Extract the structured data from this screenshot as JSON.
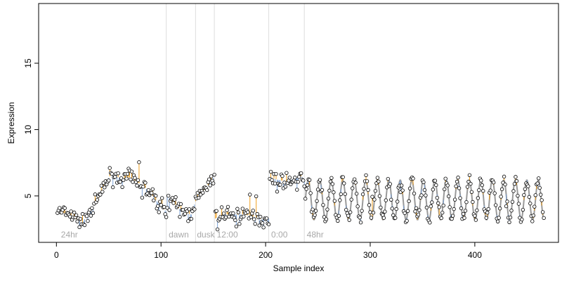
{
  "chart_data": {
    "type": "scatter",
    "title": "",
    "xlabel": "Sample index",
    "ylabel": "Expression",
    "xlim": [
      -17,
      480
    ],
    "ylim": [
      1.5,
      19.5
    ],
    "xticks": [
      0,
      100,
      200,
      300,
      400
    ],
    "yticks": [
      5,
      10,
      15
    ],
    "grid": false,
    "legend": "none",
    "segment_boundaries": [
      105,
      133,
      151,
      203,
      237
    ],
    "segments": [
      {
        "label": "24hr",
        "x": 3
      },
      {
        "label": "dawn",
        "x": 106
      },
      {
        "label": "dusk",
        "x": 133
      },
      {
        "label": "12:00",
        "x": 152
      },
      {
        "label": "0:00",
        "x": 204
      },
      {
        "label": "48hr",
        "x": 238
      }
    ],
    "colors": {
      "points": "#000000",
      "fit_line": "#999999",
      "residual_above": "#f0a020",
      "residual_below": "#7ea4d8",
      "boundary": "#dddddd",
      "segment_label": "#a8a8a8"
    },
    "profile": [
      [
        0,
        3.9
      ],
      [
        8,
        3.7
      ],
      [
        14,
        3.5
      ],
      [
        20,
        3.2
      ],
      [
        25,
        3.0
      ],
      [
        30,
        3.6
      ],
      [
        36,
        4.3
      ],
      [
        42,
        5.1
      ],
      [
        48,
        6.1
      ],
      [
        52,
        6.6
      ],
      [
        56,
        6.5
      ],
      [
        62,
        6.3
      ],
      [
        70,
        6.4
      ],
      [
        78,
        6.0
      ],
      [
        85,
        5.6
      ],
      [
        92,
        5.0
      ],
      [
        97,
        4.5
      ],
      [
        102,
        4.1
      ],
      [
        105,
        3.8
      ],
      [
        106,
        5.0
      ],
      [
        112,
        4.5
      ],
      [
        118,
        4.0
      ],
      [
        124,
        3.7
      ],
      [
        129,
        3.6
      ],
      [
        133,
        4.6
      ],
      [
        138,
        5.2
      ],
      [
        143,
        5.6
      ],
      [
        148,
        6.1
      ],
      [
        151,
        6.5
      ],
      [
        152,
        3.3
      ],
      [
        160,
        3.6
      ],
      [
        170,
        3.6
      ],
      [
        180,
        3.6
      ],
      [
        190,
        3.4
      ],
      [
        197,
        3.2
      ],
      [
        203,
        3.3
      ],
      [
        204,
        6.4
      ],
      [
        212,
        6.2
      ],
      [
        220,
        6.1
      ],
      [
        228,
        6.3
      ],
      [
        234,
        6.5
      ],
      [
        237,
        6.2
      ]
    ],
    "wave": {
      "x_start": 238,
      "x_end": 466,
      "period": 11,
      "mean": 4.7,
      "amplitude": 1.5,
      "phase_start": 238
    },
    "n_samples": 466
  }
}
